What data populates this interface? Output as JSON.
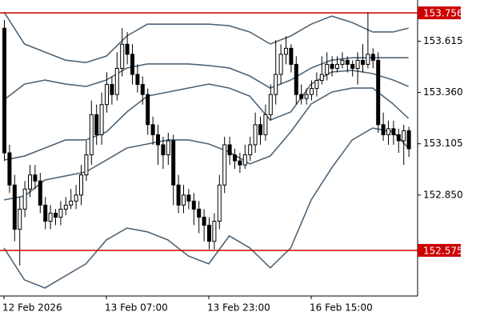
{
  "chart_data": {
    "type": "candlestick",
    "categories": [
      "12 Feb 2026",
      null,
      null,
      null,
      null,
      null,
      null,
      null,
      null,
      null,
      null,
      null,
      null,
      null,
      null,
      null,
      null,
      null,
      null,
      null,
      "13 Feb 07:00",
      null,
      null,
      null,
      null,
      null,
      null,
      null,
      null,
      null,
      null,
      null,
      null,
      null,
      null,
      null,
      null,
      null,
      null,
      null,
      "13 Feb 23:00",
      null,
      null,
      null,
      null,
      null,
      null,
      null,
      null,
      null,
      null,
      null,
      null,
      null,
      null,
      null,
      null,
      null,
      null,
      null,
      "16 Feb 15:00",
      null,
      null,
      null,
      null,
      null,
      null,
      null,
      null,
      null,
      null,
      null,
      null,
      null,
      null,
      null,
      null,
      null,
      null,
      null
    ],
    "ohlc": [
      [
        153.68,
        153.72,
        153.02,
        153.06
      ],
      [
        153.06,
        153.1,
        152.86,
        152.9
      ],
      [
        152.9,
        152.95,
        152.62,
        152.68
      ],
      [
        152.68,
        152.84,
        152.5,
        152.78
      ],
      [
        152.78,
        152.92,
        152.74,
        152.88
      ],
      [
        152.88,
        153.0,
        152.84,
        152.95
      ],
      [
        152.95,
        153.0,
        152.88,
        152.92
      ],
      [
        152.92,
        152.96,
        152.76,
        152.8
      ],
      [
        152.8,
        152.84,
        152.68,
        152.72
      ],
      [
        152.72,
        152.8,
        152.68,
        152.76
      ],
      [
        152.76,
        152.78,
        152.7,
        152.74
      ],
      [
        152.74,
        152.82,
        152.7,
        152.78
      ],
      [
        152.78,
        152.84,
        152.75,
        152.8
      ],
      [
        152.8,
        152.88,
        152.78,
        152.82
      ],
      [
        152.82,
        152.9,
        152.78,
        152.85
      ],
      [
        152.85,
        153.0,
        152.8,
        152.95
      ],
      [
        152.95,
        153.12,
        152.92,
        153.05
      ],
      [
        153.05,
        153.32,
        153.0,
        153.25
      ],
      [
        153.25,
        153.3,
        153.1,
        153.15
      ],
      [
        153.15,
        153.36,
        153.1,
        153.3
      ],
      [
        153.3,
        153.46,
        153.26,
        153.4
      ],
      [
        153.4,
        153.44,
        153.3,
        153.35
      ],
      [
        153.35,
        153.56,
        153.32,
        153.48
      ],
      [
        153.48,
        153.68,
        153.44,
        153.6
      ],
      [
        153.6,
        153.66,
        153.5,
        153.55
      ],
      [
        153.55,
        153.6,
        153.4,
        153.45
      ],
      [
        153.45,
        153.5,
        153.36,
        153.4
      ],
      [
        153.4,
        153.44,
        153.3,
        153.35
      ],
      [
        153.35,
        153.38,
        153.15,
        153.2
      ],
      [
        153.2,
        153.24,
        153.1,
        153.15
      ],
      [
        153.15,
        153.2,
        153.0,
        153.1
      ],
      [
        153.1,
        153.14,
        152.98,
        153.05
      ],
      [
        153.05,
        153.16,
        153.0,
        153.12
      ],
      [
        153.12,
        153.15,
        152.8,
        152.9
      ],
      [
        152.9,
        152.95,
        152.76,
        152.8
      ],
      [
        152.8,
        152.9,
        152.76,
        152.85
      ],
      [
        152.85,
        152.88,
        152.78,
        152.82
      ],
      [
        152.82,
        152.86,
        152.7,
        152.78
      ],
      [
        152.78,
        152.82,
        152.66,
        152.74
      ],
      [
        152.74,
        152.78,
        152.62,
        152.7
      ],
      [
        152.7,
        152.74,
        152.58,
        152.62
      ],
      [
        152.62,
        152.76,
        152.58,
        152.72
      ],
      [
        152.72,
        152.95,
        152.68,
        152.9
      ],
      [
        152.9,
        153.14,
        152.86,
        153.1
      ],
      [
        153.1,
        153.14,
        153.0,
        153.05
      ],
      [
        153.05,
        153.08,
        152.98,
        153.02
      ],
      [
        153.02,
        153.06,
        152.96,
        153.0
      ],
      [
        153.0,
        153.1,
        152.98,
        153.05
      ],
      [
        153.05,
        153.14,
        153.02,
        153.1
      ],
      [
        153.1,
        153.26,
        153.06,
        153.2
      ],
      [
        153.2,
        153.24,
        153.1,
        153.15
      ],
      [
        153.15,
        153.3,
        153.12,
        153.25
      ],
      [
        153.25,
        153.4,
        153.22,
        153.35
      ],
      [
        153.35,
        153.62,
        153.3,
        153.45
      ],
      [
        153.45,
        153.6,
        153.4,
        153.55
      ],
      [
        153.55,
        153.64,
        153.5,
        153.58
      ],
      [
        153.58,
        153.6,
        153.46,
        153.5
      ],
      [
        153.5,
        153.54,
        153.3,
        153.35
      ],
      [
        153.35,
        153.4,
        153.3,
        153.33
      ],
      [
        153.33,
        153.38,
        153.3,
        153.35
      ],
      [
        153.35,
        153.42,
        153.32,
        153.38
      ],
      [
        153.38,
        153.46,
        153.34,
        153.42
      ],
      [
        153.42,
        153.54,
        153.4,
        153.45
      ],
      [
        153.45,
        153.56,
        153.42,
        153.5
      ],
      [
        153.5,
        153.54,
        153.44,
        153.48
      ],
      [
        153.48,
        153.54,
        153.46,
        153.5
      ],
      [
        153.5,
        153.56,
        153.48,
        153.52
      ],
      [
        153.52,
        153.54,
        153.46,
        153.5
      ],
      [
        153.5,
        153.52,
        153.44,
        153.48
      ],
      [
        153.48,
        153.56,
        153.4,
        153.52
      ],
      [
        153.52,
        153.6,
        153.46,
        153.5
      ],
      [
        153.5,
        153.76,
        153.48,
        153.55
      ],
      [
        153.55,
        153.58,
        153.48,
        153.52
      ],
      [
        153.52,
        153.56,
        153.16,
        153.2
      ],
      [
        153.2,
        153.26,
        153.12,
        153.15
      ],
      [
        153.15,
        153.22,
        153.1,
        153.18
      ],
      [
        153.18,
        153.22,
        153.1,
        153.15
      ],
      [
        153.15,
        153.18,
        153.06,
        153.12
      ],
      [
        153.12,
        153.2,
        153.0,
        153.17
      ],
      [
        153.17,
        153.19,
        153.04,
        153.08
      ]
    ],
    "up_color": "#ffffff",
    "down_color": "#000000",
    "bands": {
      "color": "#4f6577",
      "x": [
        0,
        4,
        8,
        12,
        16,
        20,
        24,
        28,
        32,
        36,
        40,
        44,
        48,
        52,
        56,
        60,
        64,
        68,
        72,
        76,
        79
      ],
      "series": [
        {
          "values": [
            153.76,
            153.601,
            153.561,
            153.521,
            153.509,
            153.541,
            153.641,
            153.7,
            153.7,
            153.7,
            153.7,
            153.692,
            153.661,
            153.601,
            153.641,
            153.7,
            153.74,
            153.708,
            153.661,
            153.661,
            153.68
          ]
        },
        {
          "values": [
            153.323,
            153.402,
            153.422,
            153.402,
            153.39,
            153.422,
            153.482,
            153.502,
            153.502,
            153.502,
            153.494,
            153.482,
            153.442,
            153.382,
            153.422,
            153.482,
            153.521,
            153.533,
            153.533,
            153.533,
            153.533
          ]
        },
        {
          "values": [
            153.024,
            153.044,
            153.084,
            153.124,
            153.124,
            153.164,
            153.263,
            153.342,
            153.362,
            153.382,
            153.402,
            153.382,
            153.342,
            153.223,
            153.263,
            153.402,
            153.462,
            153.47,
            153.454,
            153.422,
            153.39
          ]
        },
        {
          "values": [
            152.826,
            152.845,
            152.925,
            152.945,
            152.965,
            153.024,
            153.084,
            153.104,
            153.124,
            153.124,
            153.104,
            153.064,
            153.005,
            153.044,
            153.164,
            153.303,
            153.362,
            153.382,
            153.382,
            153.303,
            153.231
          ]
        },
        {
          "values": [
            152.587,
            152.428,
            152.388,
            152.448,
            152.508,
            152.627,
            152.686,
            152.667,
            152.627,
            152.547,
            152.508,
            152.647,
            152.587,
            152.488,
            152.587,
            152.826,
            152.985,
            153.124,
            153.183,
            153.164,
            153.084
          ]
        }
      ]
    },
    "hlines": [
      153.756,
      152.575
    ],
    "hline_color": "#cc0000",
    "ylim": [
      152.348,
      153.82
    ],
    "yticks": [
      153.615,
      {
        "value": 153.36,
        "label": "153.360"
      },
      153.105,
      {
        "value": 152.85,
        "label": "152.850"
      }
    ]
  }
}
